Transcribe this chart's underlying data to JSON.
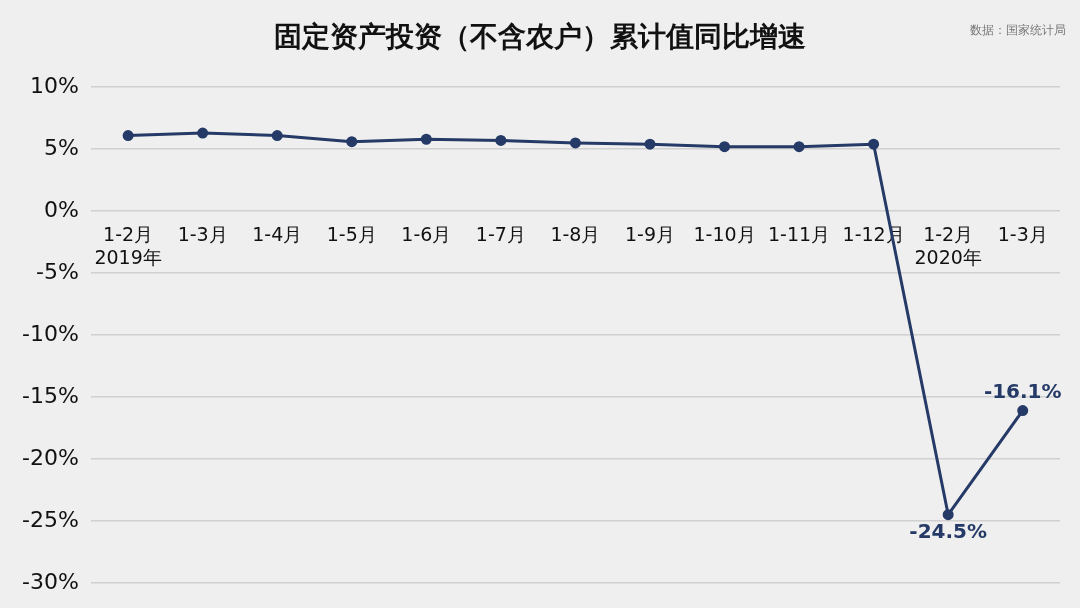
{
  "chart_data": {
    "type": "line",
    "title": "固定资产投资（不含农户）累计值同比增速",
    "annotations": [
      "数据：国家统计局"
    ],
    "categories": [
      "1-2月\n2019年",
      "1-3月",
      "1-4月",
      "1-5月",
      "1-6月",
      "1-7月",
      "1-8月",
      "1-9月",
      "1-10月",
      "1-11月",
      "1-12月",
      "1-2月\n2020年",
      "1-3月"
    ],
    "series": [
      {
        "color": "#253a66",
        "values": [
          6.1,
          6.3,
          6.1,
          5.6,
          5.8,
          5.7,
          5.5,
          5.4,
          5.2,
          5.2,
          5.4,
          -24.5,
          -16.1
        ],
        "value_labels": [
          null,
          null,
          null,
          null,
          null,
          null,
          null,
          null,
          null,
          null,
          null,
          "-24.5%",
          "-16.1%"
        ]
      }
    ],
    "ylim": [
      -30,
      10
    ],
    "yticks": [
      {
        "value": -30,
        "label": "-30%"
      },
      {
        "value": -25,
        "label": "-25%"
      },
      {
        "value": -20,
        "label": "-20%"
      },
      {
        "value": -15,
        "label": "-15%"
      },
      {
        "value": -10,
        "label": "-10%"
      },
      {
        "value": -5,
        "label": "-5%"
      },
      {
        "value": 0,
        "label": "0%"
      },
      {
        "value": 5,
        "label": "5%"
      },
      {
        "value": 10,
        "label": "10%"
      }
    ],
    "grid": "y",
    "marker": "circle",
    "line_style": "solid",
    "legend": false
  }
}
